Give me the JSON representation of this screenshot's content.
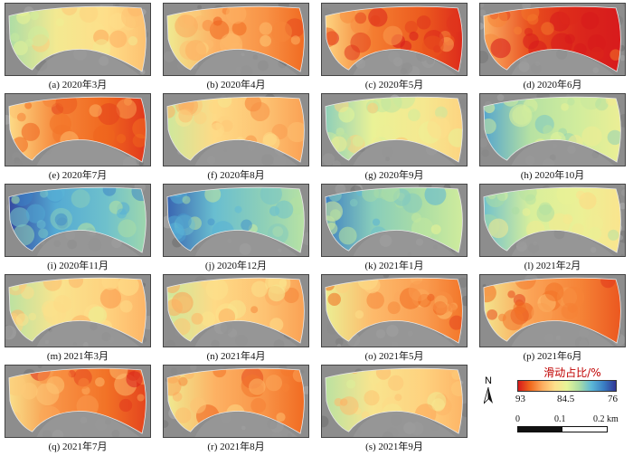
{
  "panels": [
    {
      "label": "(a) 2020年3月",
      "level": 0.55
    },
    {
      "label": "(b) 2020年4月",
      "level": 0.72
    },
    {
      "label": "(c) 2020年5月",
      "level": 0.82
    },
    {
      "label": "(d) 2020年6月",
      "level": 0.9
    },
    {
      "label": "(e) 2020年7月",
      "level": 0.8
    },
    {
      "label": "(f) 2020年8月",
      "level": 0.62
    },
    {
      "label": "(g) 2020年9月",
      "level": 0.5
    },
    {
      "label": "(h) 2020年10月",
      "level": 0.38
    },
    {
      "label": "(i) 2020年11月",
      "level": 0.2
    },
    {
      "label": "(j) 2020年12月",
      "level": 0.25
    },
    {
      "label": "(k) 2021年1月",
      "level": 0.3
    },
    {
      "label": "(l) 2021年2月",
      "level": 0.45
    },
    {
      "label": "(m) 2021年3月",
      "level": 0.58
    },
    {
      "label": "(n) 2021年4月",
      "level": 0.62
    },
    {
      "label": "(o) 2021年5月",
      "level": 0.7
    },
    {
      "label": "(p) 2021年6月",
      "level": 0.75
    },
    {
      "label": "(q) 2021年7月",
      "level": 0.78
    },
    {
      "label": "(r) 2021年8月",
      "level": 0.72
    },
    {
      "label": "(s) 2021年9月",
      "level": 0.58
    }
  ],
  "legend": {
    "title": "滑动占比/%",
    "max_label": "93",
    "mid_label": "84.5",
    "min_label": "76",
    "colors": [
      "#d7191c",
      "#f16a1e",
      "#fdae61",
      "#fee08b",
      "#e6f598",
      "#abdda4",
      "#5cb8d8",
      "#3a7fc4",
      "#313695"
    ]
  },
  "north_label": "N",
  "scale_bar": {
    "labels": [
      "0",
      "0.1",
      "0.2 km"
    ]
  },
  "basemap_color": "#8d8d8d"
}
